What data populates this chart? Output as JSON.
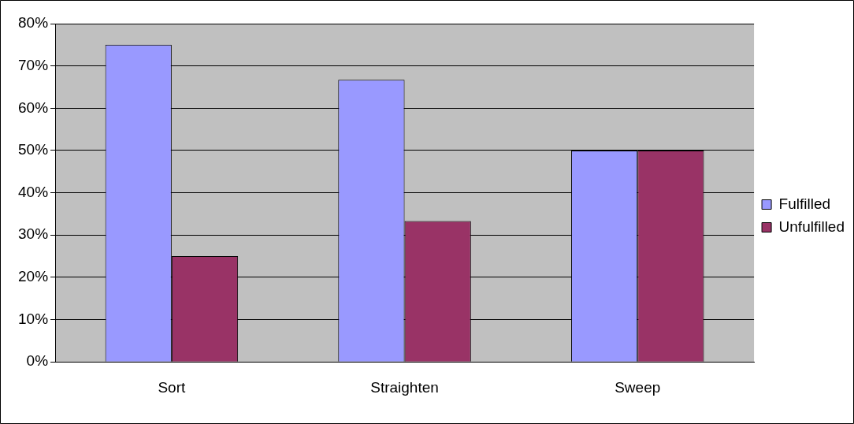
{
  "chart_data": {
    "type": "bar",
    "categories": [
      "Sort",
      "Straighten",
      "Sweep"
    ],
    "series": [
      {
        "name": "Fulfilled",
        "color": "#9999ff",
        "values": [
          75,
          66.7,
          50
        ]
      },
      {
        "name": "Unfulfilled",
        "color": "#993366",
        "values": [
          25,
          33.3,
          50
        ]
      }
    ],
    "ylim": [
      0,
      80
    ],
    "yticks": [
      {
        "value": 0,
        "label": "0%"
      },
      {
        "value": 10,
        "label": "10%"
      },
      {
        "value": 20,
        "label": "20%"
      },
      {
        "value": 30,
        "label": "30%"
      },
      {
        "value": 40,
        "label": "40%"
      },
      {
        "value": 50,
        "label": "50%"
      },
      {
        "value": 60,
        "label": "60%"
      },
      {
        "value": 70,
        "label": "70%"
      },
      {
        "value": 80,
        "label": "80%"
      }
    ],
    "grid": "y",
    "legend": "right"
  }
}
